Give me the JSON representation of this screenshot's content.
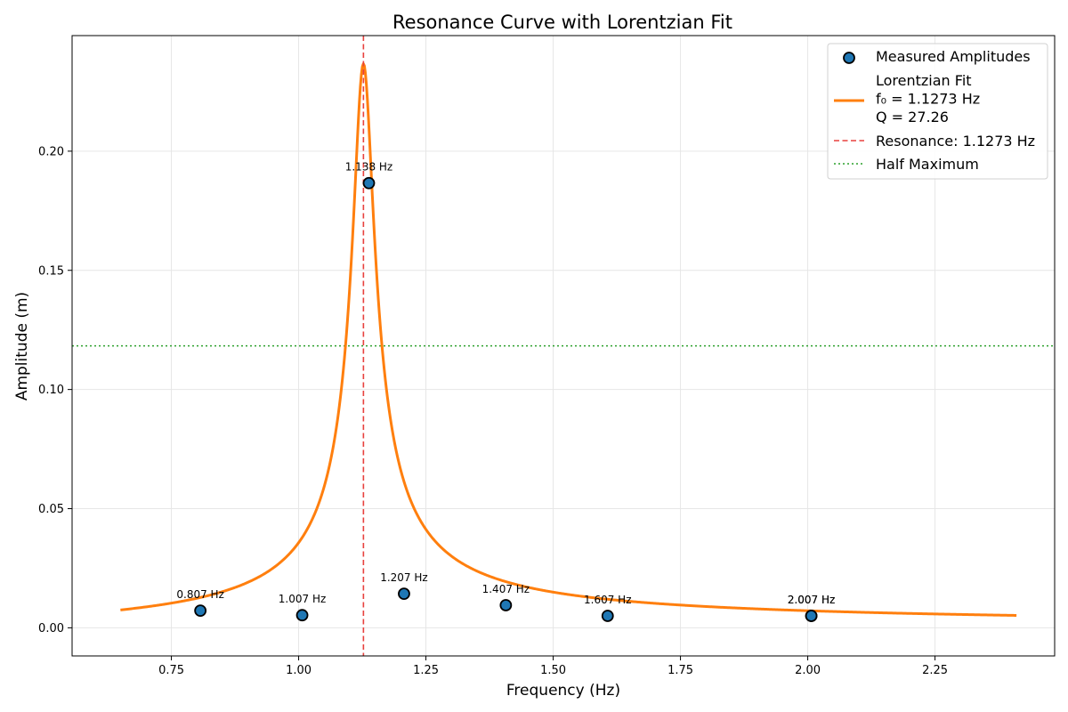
{
  "chart_data": {
    "type": "scatter",
    "title": "Resonance Curve with Lorentzian Fit",
    "xlabel": "Frequency (Hz)",
    "ylabel": "Amplitude (m)",
    "xlim": [
      0.555,
      2.485
    ],
    "ylim": [
      -0.0118,
      0.2485
    ],
    "xticks": [
      0.75,
      1.0,
      1.25,
      1.5,
      1.75,
      2.0,
      2.25
    ],
    "xtick_labels": [
      "0.75",
      "1.00",
      "1.25",
      "1.50",
      "1.75",
      "2.00",
      "2.25"
    ],
    "yticks": [
      0.0,
      0.05,
      0.1,
      0.15,
      0.2
    ],
    "ytick_labels": [
      "0.00",
      "0.05",
      "0.10",
      "0.15",
      "0.20"
    ],
    "grid": true,
    "legend_position": "top-right",
    "series": [
      {
        "name": "Measured Amplitudes",
        "kind": "scatter",
        "color": "#1f77b4",
        "points": [
          {
            "x": 0.807,
            "y": 0.0072,
            "label": "0.807 Hz"
          },
          {
            "x": 1.007,
            "y": 0.0053,
            "label": "1.007 Hz"
          },
          {
            "x": 1.138,
            "y": 0.1866,
            "label": "1.138 Hz"
          },
          {
            "x": 1.207,
            "y": 0.0143,
            "label": "1.207 Hz"
          },
          {
            "x": 1.407,
            "y": 0.0095,
            "label": "1.407 Hz"
          },
          {
            "x": 1.607,
            "y": 0.005,
            "label": "1.607 Hz"
          },
          {
            "x": 2.007,
            "y": 0.005,
            "label": "2.007 Hz"
          },
          {
            "x": 2.007,
            "y": 0.005,
            "label": "2.007 Hz"
          }
        ]
      },
      {
        "name": "Lorentzian Fit",
        "legend_lines": [
          "Lorentzian Fit",
          "f₀ = 1.1273 Hz",
          "Q = 27.26"
        ],
        "kind": "line",
        "color": "#ff7f0e",
        "model": {
          "f0": 1.1273,
          "Q": 27.26,
          "peak": 0.2367,
          "x_range": [
            0.65,
            2.41
          ]
        }
      },
      {
        "name": "Resonance: 1.1273 Hz",
        "kind": "vline",
        "x": 1.1273,
        "color": "#e8413e",
        "style": "dashed"
      },
      {
        "name": "Half Maximum",
        "kind": "hline",
        "y": 0.1183,
        "color": "#2ca02c",
        "style": "dotted"
      }
    ]
  }
}
